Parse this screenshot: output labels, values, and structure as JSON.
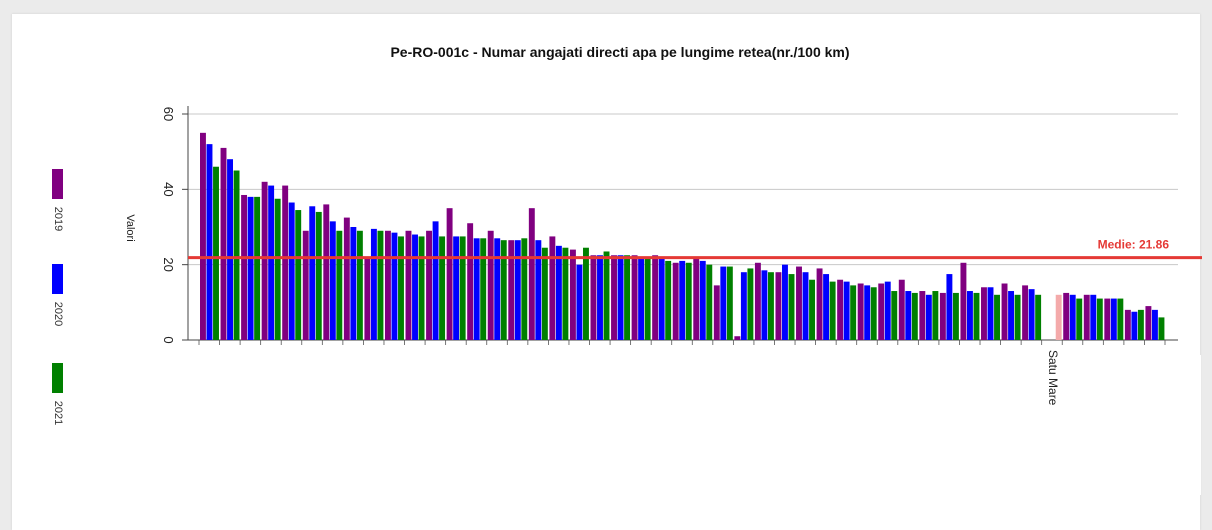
{
  "chart_data": {
    "type": "bar",
    "title": "Pe-RO-001c - Numar angajati directi apa pe lungime retea(nr./100 km)",
    "ylabel": "Valori",
    "ylim": [
      0,
      60
    ],
    "yticks": [
      "0",
      "20",
      "40",
      "60"
    ],
    "mean_line": {
      "label": "Medie: 21.86",
      "value": 21.86,
      "color": "#e53935"
    },
    "highlight_label": "Satu Mare",
    "legend_placement": "left",
    "series": [
      {
        "name": "2019",
        "color": "#800080",
        "values": [
          55,
          51,
          38.5,
          42,
          41,
          29,
          36,
          32.5,
          22,
          29,
          29,
          29,
          35,
          31,
          29,
          26.5,
          35,
          27.5,
          24,
          22.5,
          22.5,
          22.5,
          22.5,
          20.5,
          21.5,
          14.5,
          1,
          20.5,
          18,
          19.5,
          19,
          16,
          15,
          15,
          16,
          13,
          12.5,
          20.5,
          14,
          15,
          14.5,
          0,
          12.5,
          12,
          11,
          8,
          9
        ]
      },
      {
        "name": "2020",
        "color": "#0000ff",
        "values": [
          52,
          48,
          38,
          41,
          36.5,
          35.5,
          31.5,
          30,
          29.5,
          28.5,
          28,
          31.5,
          27.5,
          27,
          27,
          26.5,
          26.5,
          25,
          20,
          22.5,
          22.5,
          22,
          22,
          21,
          21,
          19.5,
          18,
          18.5,
          20,
          18,
          17.5,
          15.5,
          14.5,
          15.5,
          13,
          12,
          17.5,
          13,
          14,
          13,
          13.5,
          0,
          12,
          12,
          11,
          7.5,
          8
        ]
      },
      {
        "name": "2021",
        "color": "#008000",
        "values": [
          46,
          45,
          38,
          37.5,
          34.5,
          34,
          29,
          29,
          29,
          27.5,
          27.5,
          27.5,
          27.5,
          27,
          26.5,
          27,
          24.5,
          24.5,
          24.5,
          23.5,
          22.5,
          22,
          21,
          20.5,
          20,
          19.5,
          19,
          18,
          17.5,
          16,
          15.5,
          14.5,
          14,
          13,
          12.5,
          13,
          12.5,
          12.5,
          12,
          12,
          12,
          12,
          11,
          11,
          11,
          8,
          6
        ]
      }
    ],
    "highlight_index": 41,
    "highlight_color": "#f4aaaa"
  }
}
